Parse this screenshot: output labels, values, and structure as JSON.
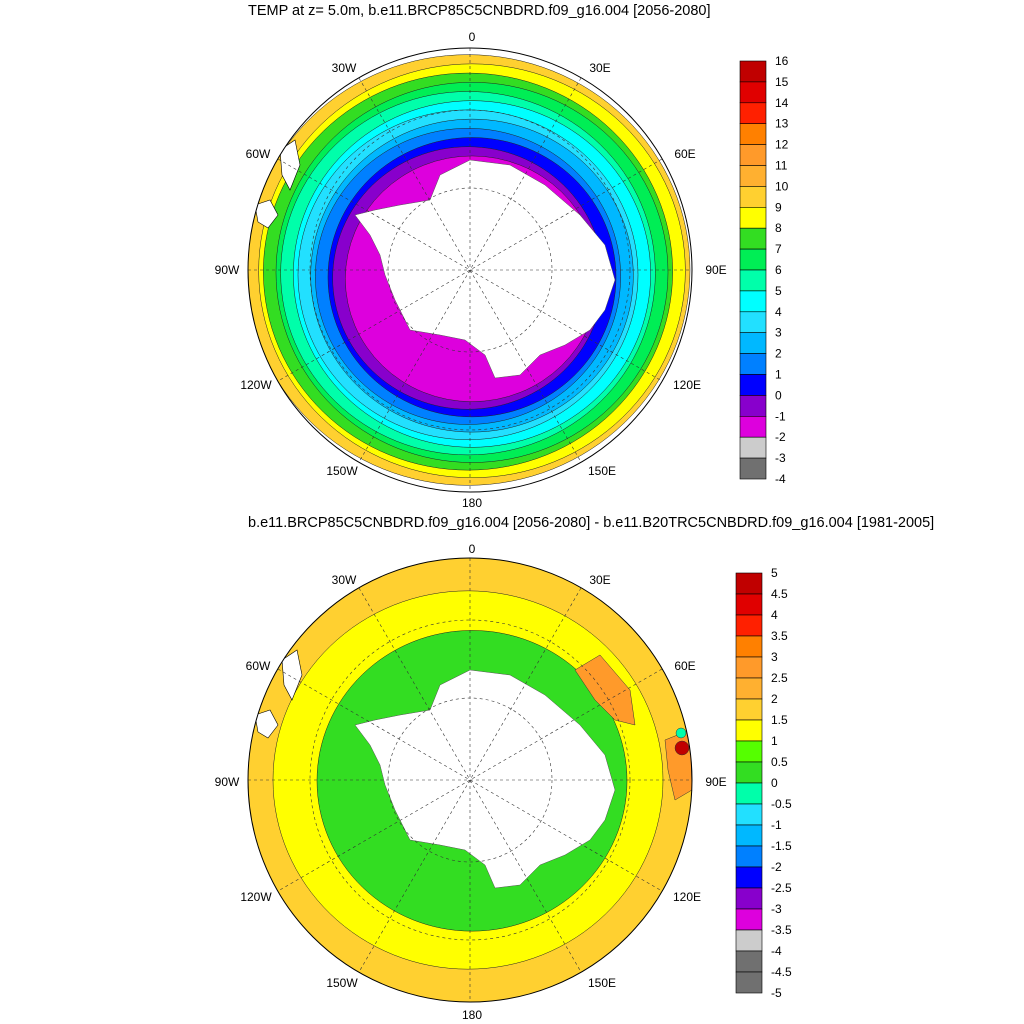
{
  "panels": [
    {
      "title": "TEMP at z=   5.0m, b.e11.BRCP85C5CNBDRD.f09_g16.004 [2056-2080]",
      "lon_labels": {
        "n": "0",
        "ne30": "30E",
        "ne60": "60E",
        "e": "90E",
        "se120": "120E",
        "se150": "150E",
        "s": "180",
        "sw150": "150W",
        "sw120": "120W",
        "w": "90W",
        "nw60": "60W",
        "nw30": "30W"
      },
      "colorbar": {
        "labels": [
          "16",
          "15",
          "14",
          "13",
          "12",
          "11",
          "10",
          "9",
          "8",
          "7",
          "6",
          "5",
          "4",
          "3",
          "2",
          "1",
          "0",
          "-1",
          "-2",
          "-3",
          "-4"
        ],
        "colors": [
          "#c00000",
          "#e00000",
          "#ff2000",
          "#ff8000",
          "#ff9a2a",
          "#ffb030",
          "#ffd030",
          "#ffff00",
          "#33dd22",
          "#00ee55",
          "#00ffaa",
          "#00ffff",
          "#22e0ff",
          "#00b8ff",
          "#0080ff",
          "#0000ff",
          "#8800cc",
          "#dd00dd",
          "#cccccc",
          "#707070"
        ]
      },
      "rings_ocean": [
        "#ffd030",
        "#ffff00",
        "#33dd22",
        "#00ee55",
        "#00ffaa",
        "#00ffff",
        "#22e0ff",
        "#00b8ff",
        "#0080ff",
        "#0000ff",
        "#8800cc",
        "#dd00dd"
      ]
    },
    {
      "title": "b.e11.BRCP85C5CNBDRD.f09_g16.004 [2056-2080] - b.e11.B20TRC5CNBDRD.f09_g16.004 [1981-2005]",
      "lon_labels": {
        "n": "0",
        "ne30": "30E",
        "ne60": "60E",
        "e": "90E",
        "se120": "120E",
        "se150": "150E",
        "s": "180",
        "sw150": "150W",
        "sw120": "120W",
        "w": "90W",
        "nw60": "60W",
        "nw30": "30W"
      },
      "colorbar": {
        "labels": [
          "5",
          "4.5",
          "4",
          "3.5",
          "3",
          "2.5",
          "2",
          "1.5",
          "1",
          "0.5",
          "0",
          "-0.5",
          "-1",
          "-1.5",
          "-2",
          "-2.5",
          "-3",
          "-3.5",
          "-4",
          "-4.5",
          "-5"
        ],
        "colors": [
          "#c00000",
          "#e00000",
          "#ff2000",
          "#ff8000",
          "#ff9a2a",
          "#ffb030",
          "#ffd030",
          "#ffff00",
          "#55ff00",
          "#33dd22",
          "#00ffaa",
          "#22e0ff",
          "#00b8ff",
          "#0080ff",
          "#0000ff",
          "#8800cc",
          "#dd00dd",
          "#cccccc",
          "#707070",
          "#707070"
        ]
      },
      "rings_ocean": [
        "#ffd030",
        "#ffff00",
        "#33dd22"
      ]
    }
  ]
}
